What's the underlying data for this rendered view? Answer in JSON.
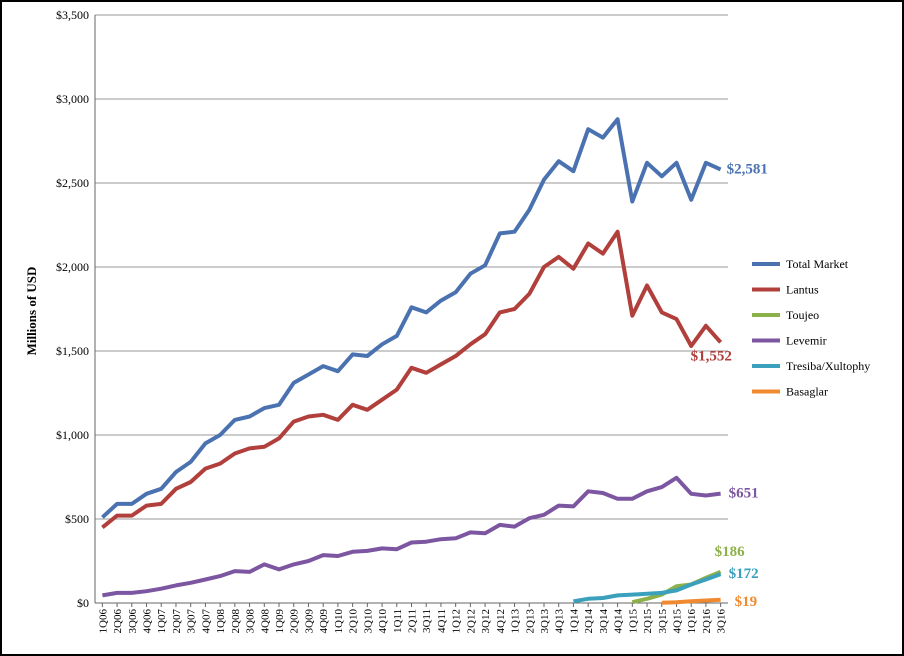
{
  "chart_data": {
    "type": "line",
    "y_label": "Millions of USD",
    "categories": [
      "1Q06",
      "2Q06",
      "3Q06",
      "4Q06",
      "1Q07",
      "2Q07",
      "3Q07",
      "4Q07",
      "1Q08",
      "2Q08",
      "3Q08",
      "4Q08",
      "1Q09",
      "2Q09",
      "3Q09",
      "4Q09",
      "1Q10",
      "2Q10",
      "3Q10",
      "4Q10",
      "1Q11",
      "2Q11",
      "3Q11",
      "4Q11",
      "1Q12",
      "2Q12",
      "3Q12",
      "4Q12",
      "1Q13",
      "2Q13",
      "3Q13",
      "4Q13",
      "1Q14",
      "2Q14",
      "3Q14",
      "4Q14",
      "1Q15",
      "2Q15",
      "3Q15",
      "4Q15",
      "1Q16",
      "2Q16",
      "3Q16"
    ],
    "series": [
      {
        "name": "Total Market",
        "color": "#4a72b0",
        "values": [
          510,
          590,
          590,
          650,
          680,
          780,
          840,
          950,
          1000,
          1090,
          1110,
          1160,
          1180,
          1310,
          1360,
          1410,
          1380,
          1480,
          1470,
          1540,
          1590,
          1760,
          1730,
          1800,
          1850,
          1960,
          2010,
          2200,
          2210,
          2340,
          2520,
          2630,
          2570,
          2820,
          2770,
          2880,
          2390,
          2620,
          2540,
          2620,
          2400,
          2620,
          2581
        ],
        "value_labels": [
          null,
          null,
          null,
          null,
          null,
          null,
          null,
          null,
          null,
          null,
          null,
          null,
          null,
          null,
          null,
          null,
          null,
          null,
          null,
          null,
          null,
          null,
          null,
          null,
          null,
          null,
          null,
          null,
          null,
          null,
          null,
          null,
          null,
          null,
          null,
          null,
          null,
          null,
          null,
          null,
          null,
          null,
          "$2,581"
        ]
      },
      {
        "name": "Lantus",
        "color": "#b13f3b",
        "values": [
          450,
          520,
          520,
          580,
          590,
          680,
          720,
          800,
          830,
          890,
          920,
          930,
          980,
          1080,
          1110,
          1120,
          1090,
          1180,
          1150,
          1210,
          1270,
          1400,
          1370,
          1420,
          1470,
          1540,
          1600,
          1730,
          1750,
          1840,
          2000,
          2060,
          1990,
          2140,
          2080,
          2210,
          1710,
          1890,
          1730,
          1690,
          1530,
          1650,
          1552
        ],
        "value_labels": [
          null,
          null,
          null,
          null,
          null,
          null,
          null,
          null,
          null,
          null,
          null,
          null,
          null,
          null,
          null,
          null,
          null,
          null,
          null,
          null,
          null,
          null,
          null,
          null,
          null,
          null,
          null,
          null,
          null,
          null,
          null,
          null,
          null,
          null,
          null,
          null,
          null,
          null,
          null,
          null,
          null,
          null,
          "$1,552"
        ]
      },
      {
        "name": "Toujeo",
        "color": "#8cb04a",
        "values": [
          null,
          null,
          null,
          null,
          null,
          null,
          null,
          null,
          null,
          null,
          null,
          null,
          null,
          null,
          null,
          null,
          null,
          null,
          null,
          null,
          null,
          null,
          null,
          null,
          null,
          null,
          null,
          null,
          null,
          null,
          null,
          null,
          null,
          null,
          null,
          null,
          5,
          25,
          50,
          100,
          110,
          150,
          186
        ],
        "value_labels": [
          null,
          null,
          null,
          null,
          null,
          null,
          null,
          null,
          null,
          null,
          null,
          null,
          null,
          null,
          null,
          null,
          null,
          null,
          null,
          null,
          null,
          null,
          null,
          null,
          null,
          null,
          null,
          null,
          null,
          null,
          null,
          null,
          null,
          null,
          null,
          null,
          null,
          null,
          null,
          null,
          null,
          null,
          "$186"
        ]
      },
      {
        "name": "Levemir",
        "color": "#7c56a0",
        "values": [
          45,
          60,
          60,
          70,
          85,
          105,
          120,
          140,
          160,
          190,
          185,
          230,
          200,
          230,
          250,
          285,
          280,
          305,
          310,
          325,
          320,
          360,
          365,
          380,
          385,
          420,
          415,
          465,
          455,
          505,
          525,
          580,
          575,
          665,
          655,
          620,
          620,
          665,
          690,
          745,
          650,
          640,
          651
        ],
        "value_labels": [
          null,
          null,
          null,
          null,
          null,
          null,
          null,
          null,
          null,
          null,
          null,
          null,
          null,
          null,
          null,
          null,
          null,
          null,
          null,
          null,
          null,
          null,
          null,
          null,
          null,
          null,
          null,
          null,
          null,
          null,
          null,
          null,
          null,
          null,
          null,
          null,
          null,
          null,
          null,
          null,
          null,
          null,
          "$651"
        ]
      },
      {
        "name": "Tresiba/Xultophy",
        "color": "#3aa0bc",
        "values": [
          null,
          null,
          null,
          null,
          null,
          null,
          null,
          null,
          null,
          null,
          null,
          null,
          null,
          null,
          null,
          null,
          null,
          null,
          null,
          null,
          null,
          null,
          null,
          null,
          null,
          null,
          null,
          null,
          null,
          null,
          null,
          null,
          10,
          25,
          30,
          45,
          50,
          55,
          60,
          75,
          110,
          140,
          172
        ],
        "value_labels": [
          null,
          null,
          null,
          null,
          null,
          null,
          null,
          null,
          null,
          null,
          null,
          null,
          null,
          null,
          null,
          null,
          null,
          null,
          null,
          null,
          null,
          null,
          null,
          null,
          null,
          null,
          null,
          null,
          null,
          null,
          null,
          null,
          null,
          null,
          null,
          null,
          null,
          null,
          null,
          null,
          null,
          null,
          "$172"
        ]
      },
      {
        "name": "Basaglar",
        "color": "#f08a30",
        "values": [
          null,
          null,
          null,
          null,
          null,
          null,
          null,
          null,
          null,
          null,
          null,
          null,
          null,
          null,
          null,
          null,
          null,
          null,
          null,
          null,
          null,
          null,
          null,
          null,
          null,
          null,
          null,
          null,
          null,
          null,
          null,
          null,
          null,
          null,
          null,
          null,
          null,
          null,
          2,
          5,
          10,
          15,
          19
        ],
        "value_labels": [
          null,
          null,
          null,
          null,
          null,
          null,
          null,
          null,
          null,
          null,
          null,
          null,
          null,
          null,
          null,
          null,
          null,
          null,
          null,
          null,
          null,
          null,
          null,
          null,
          null,
          null,
          null,
          null,
          null,
          null,
          null,
          null,
          null,
          null,
          null,
          null,
          null,
          null,
          null,
          null,
          null,
          null,
          "$19"
        ]
      }
    ],
    "ylim": [
      0,
      3500
    ],
    "yticks": [
      {
        "value": 0,
        "label": "$0"
      },
      {
        "value": 500,
        "label": "$500"
      },
      {
        "value": 1000,
        "label": "$1,000"
      },
      {
        "value": 1500,
        "label": "$1,500"
      },
      {
        "value": 2000,
        "label": "$2,000"
      },
      {
        "value": 2500,
        "label": "$2,500"
      },
      {
        "value": 3000,
        "label": "$3,000"
      },
      {
        "value": 3500,
        "label": "$3,500"
      }
    ],
    "grid": true,
    "legend": "right"
  }
}
